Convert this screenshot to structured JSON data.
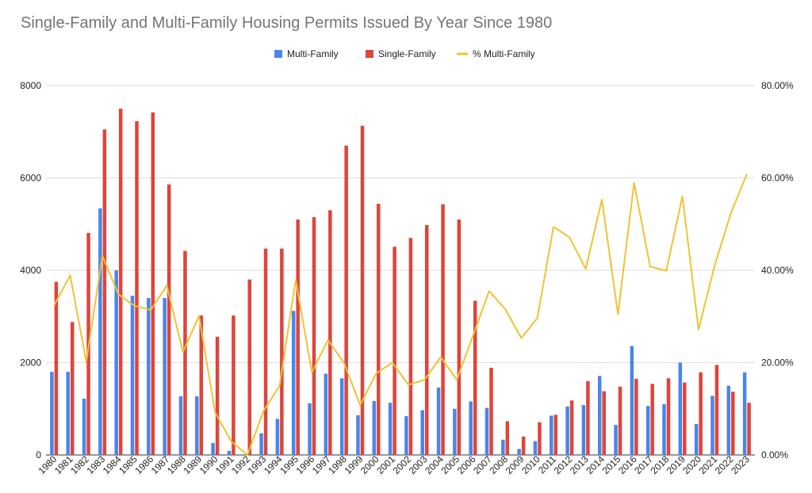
{
  "chart_data": {
    "type": "bar",
    "title": "Single-Family and Multi-Family Housing Permits Issued By Year Since 1980",
    "categories": [
      "1980",
      "1981",
      "1982",
      "1983",
      "1984",
      "1985",
      "1986",
      "1987",
      "1988",
      "1989",
      "1990",
      "1991",
      "1992",
      "1993",
      "1994",
      "1995",
      "1996",
      "1997",
      "1998",
      "1999",
      "2000",
      "2001",
      "2002",
      "2003",
      "2004",
      "2005",
      "2006",
      "2007",
      "2008",
      "2009",
      "2010",
      "2011",
      "2012",
      "2013",
      "2014",
      "2015",
      "2016",
      "2017",
      "2018",
      "2019",
      "2020",
      "2021",
      "2022",
      "2023"
    ],
    "series": [
      {
        "name": "Multi-Family",
        "type": "bar",
        "axis": "left",
        "color": "#4a86e8",
        "values": [
          1800,
          1800,
          1220,
          5340,
          4000,
          3450,
          3400,
          3400,
          1270,
          1270,
          260,
          90,
          0,
          470,
          780,
          3120,
          1120,
          1760,
          1660,
          860,
          1170,
          1130,
          840,
          970,
          1460,
          1000,
          1160,
          1020,
          330,
          130,
          300,
          850,
          1050,
          1080,
          1710,
          650,
          2360,
          1060,
          1100,
          2000,
          670,
          1280,
          1500,
          1790
        ]
      },
      {
        "name": "Single-Family",
        "type": "bar",
        "axis": "left",
        "color": "#e0443a",
        "values": [
          3750,
          2880,
          4810,
          7050,
          7500,
          7230,
          7420,
          5860,
          4420,
          3020,
          2560,
          3020,
          3800,
          4470,
          4470,
          5100,
          5150,
          5300,
          6700,
          7130,
          5440,
          4510,
          4700,
          4980,
          5430,
          5100,
          3340,
          1890,
          730,
          400,
          710,
          870,
          1180,
          1600,
          1380,
          1480,
          1650,
          1540,
          1660,
          1570,
          1790,
          1950,
          1370,
          1130
        ]
      },
      {
        "name": "% Multi-Family",
        "type": "line",
        "axis": "right",
        "color": "#f1c232",
        "values": [
          32.4,
          38.9,
          20.2,
          43.1,
          34.8,
          32.3,
          31.4,
          36.7,
          22.3,
          30.1,
          9.2,
          2.9,
          0,
          9.5,
          15.0,
          37.9,
          17.9,
          24.9,
          19.9,
          10.8,
          17.7,
          20.0,
          15.2,
          16.3,
          21.2,
          16.3,
          25.8,
          35.5,
          31.6,
          25.3,
          29.7,
          49.4,
          47.1,
          40.3,
          55.3,
          30.5,
          58.9,
          40.8,
          39.9,
          56.0,
          27.2,
          41.0,
          52.3,
          60.8
        ]
      }
    ],
    "y_left": {
      "min": 0,
      "max": 8000,
      "ticks": [
        "0",
        "2000",
        "4000",
        "6000",
        "8000"
      ]
    },
    "y_right": {
      "min": 0,
      "max": 80,
      "ticks": [
        "0.00%",
        "20.00%",
        "40.00%",
        "60.00%",
        "80.00%"
      ]
    },
    "grid": true,
    "legend_position": "top-center",
    "xlabel": "",
    "ylabel": ""
  }
}
